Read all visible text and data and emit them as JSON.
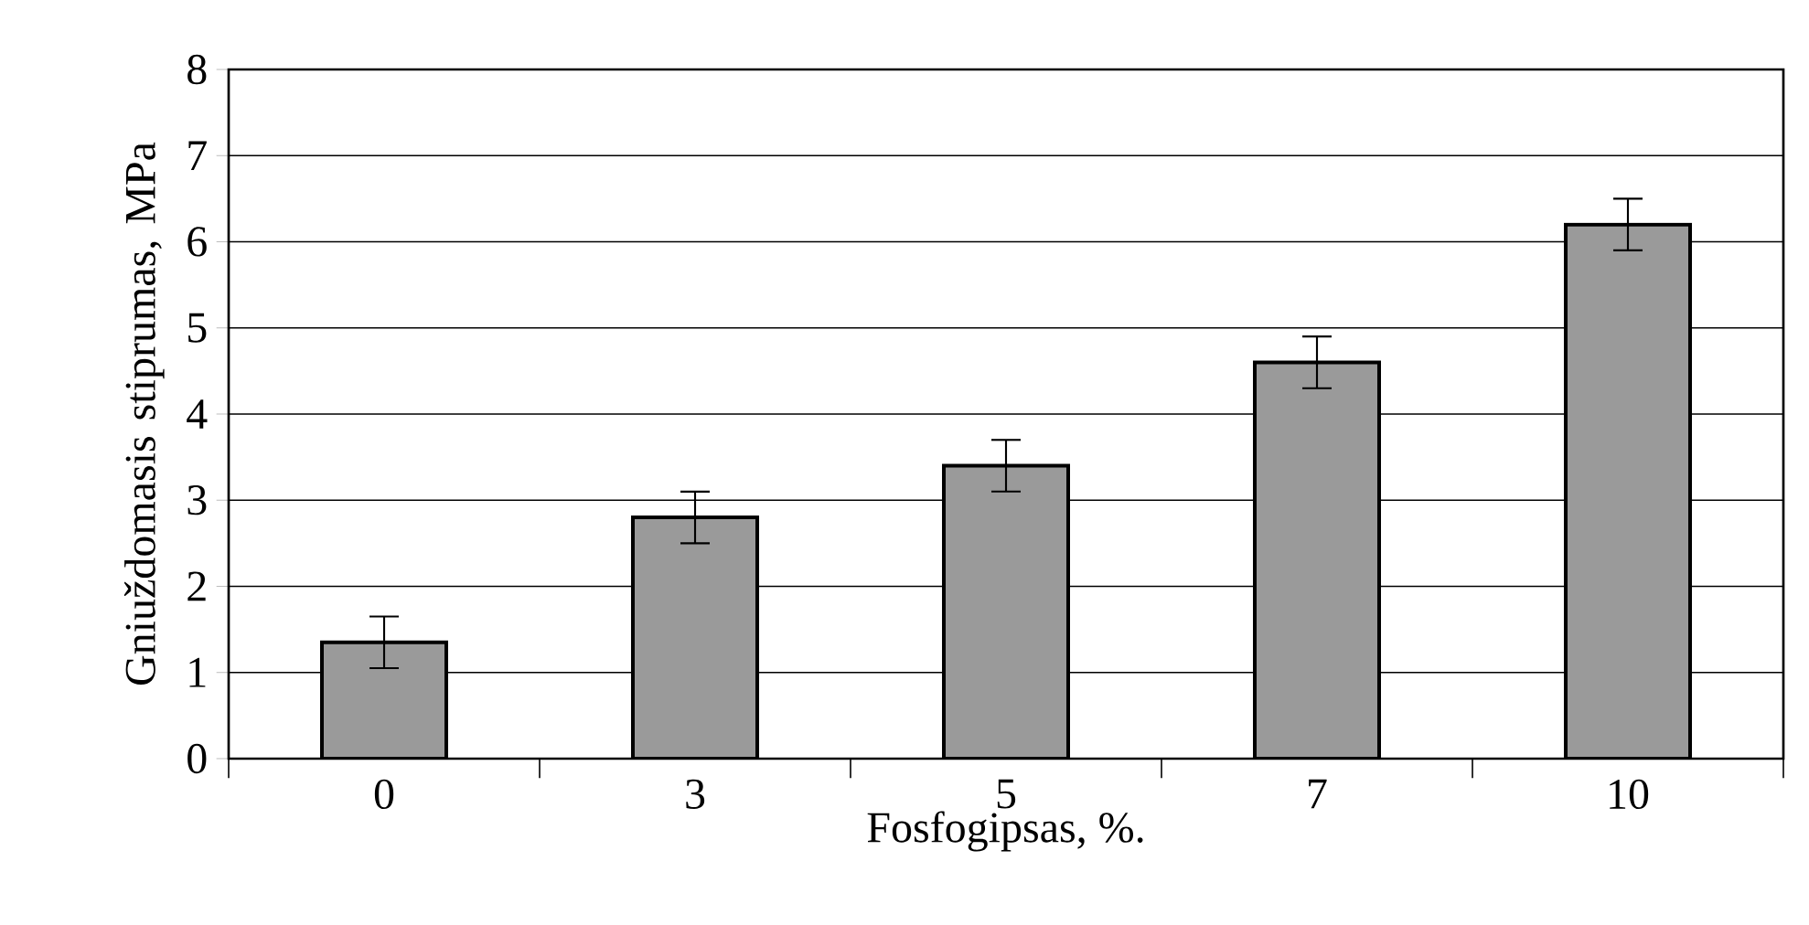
{
  "chart_data": {
    "type": "bar",
    "categories": [
      "0",
      "3",
      "5",
      "7",
      "10"
    ],
    "values": [
      1.35,
      2.8,
      3.4,
      4.6,
      6.2
    ],
    "errors": [
      0.3,
      0.3,
      0.3,
      0.3,
      0.3
    ],
    "color": "#9a9a9a",
    "xlabel": "Fosfogipsas, %.",
    "ylabel": "Gniuždomasis stiprumas, MPa",
    "ylim": [
      0,
      8
    ],
    "yticks": [
      0,
      1,
      2,
      3,
      4,
      5,
      6,
      7,
      8
    ],
    "grid": "y"
  }
}
